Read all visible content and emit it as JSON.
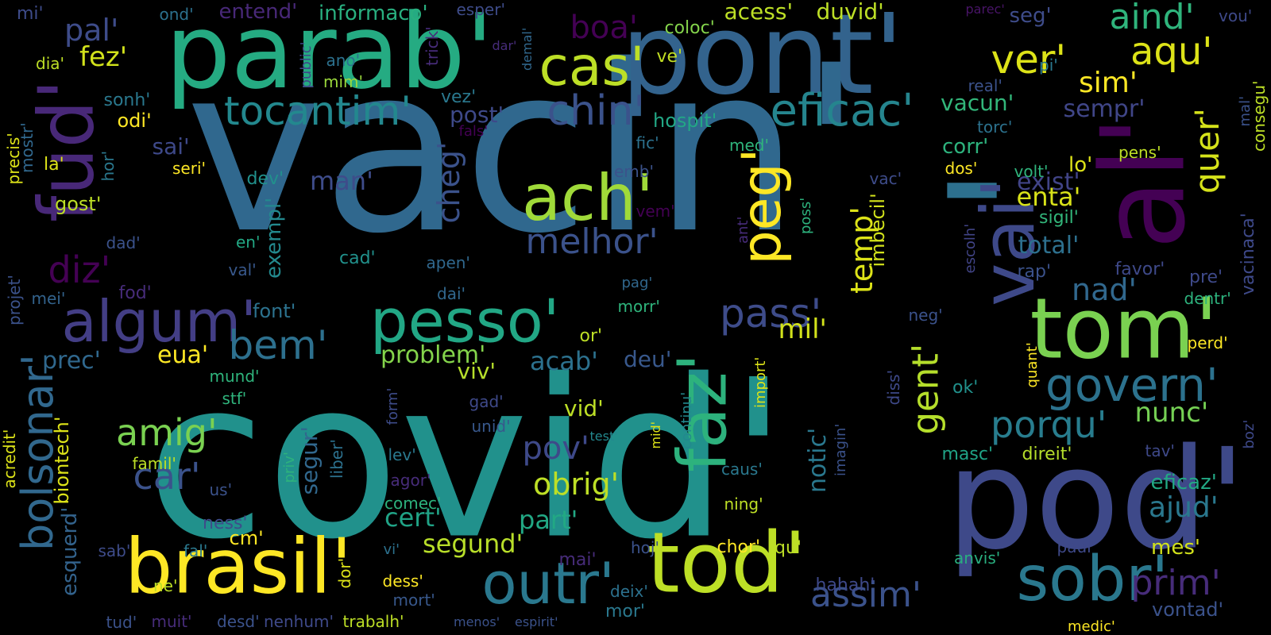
{
  "words": [
    {
      "text": "vacin'",
      "color": "#30688e"
    },
    {
      "text": "covid'",
      "color": "#21918c"
    },
    {
      "text": "'",
      "color": "#2d708e"
    },
    {
      "text": "pod'",
      "color": "#3e4989"
    },
    {
      "text": "parab'",
      "color": "#25ab82"
    },
    {
      "text": "pont'",
      "color": "#33638d"
    },
    {
      "text": "brasil'",
      "color": "#fde725"
    },
    {
      "text": "tod'",
      "color": "#bddf26"
    },
    {
      "text": "sobr'",
      "color": "#2a788e"
    },
    {
      "text": "outr'",
      "color": "#2a788e"
    },
    {
      "text": "tom'",
      "color": "#7ad151"
    },
    {
      "text": "fud'",
      "color": "#482878"
    },
    {
      "text": "vai'",
      "color": "#3e4989"
    },
    {
      "text": "al'",
      "color": "#440154"
    },
    {
      "text": "algum'",
      "color": "#433e85"
    },
    {
      "text": "pesso'",
      "color": "#22a785"
    },
    {
      "text": "faz'",
      "color": "#2db27d"
    },
    {
      "text": "ach'",
      "color": "#a0da39"
    },
    {
      "text": "cas'",
      "color": "#bddf26"
    },
    {
      "text": "peg'",
      "color": "#fde725"
    },
    {
      "text": "bolsonar'",
      "color": "#31688e"
    },
    {
      "text": "govern'",
      "color": "#2c728e"
    },
    {
      "text": "tocantim'",
      "color": "#23888e"
    },
    {
      "text": "eficac'",
      "color": "#25858e"
    },
    {
      "text": "chin'",
      "color": "#3b528b"
    },
    {
      "text": "ver'",
      "color": "#dde318"
    },
    {
      "text": "aqu'",
      "color": "#dde318"
    },
    {
      "text": "aind'",
      "color": "#2fb47c"
    },
    {
      "text": "quer'",
      "color": "#d5e21a"
    },
    {
      "text": "melhor'",
      "color": "#3b528b"
    },
    {
      "text": "porqu'",
      "color": "#287d8e"
    },
    {
      "text": "amig'",
      "color": "#7ad151"
    },
    {
      "text": "car'",
      "color": "#3b528b"
    },
    {
      "text": "pass'",
      "color": "#3e4c8a"
    },
    {
      "text": "bem'",
      "color": "#2d708e"
    },
    {
      "text": "gent'",
      "color": "#b5de2b"
    },
    {
      "text": "temp'",
      "color": "#dde318"
    },
    {
      "text": "assim'",
      "color": "#3b528b"
    },
    {
      "text": "prim'",
      "color": "#472c7a"
    },
    {
      "text": "nad'",
      "color": "#31688e"
    },
    {
      "text": "diz'",
      "color": "#440154"
    },
    {
      "text": "pov'",
      "color": "#3e4989"
    },
    {
      "text": "obrig'",
      "color": "#bddf26"
    },
    {
      "text": "ajud'",
      "color": "#2a788e"
    },
    {
      "text": "nunc'",
      "color": "#75d054"
    },
    {
      "text": "mil'",
      "color": "#d2e21b"
    },
    {
      "text": "cheg'",
      "color": "#3b528b"
    },
    {
      "text": "boa'",
      "color": "#440154"
    },
    {
      "text": "pal'",
      "color": "#3e4c8a"
    },
    {
      "text": "fez'",
      "color": "#d2e21b"
    },
    {
      "text": "sim'",
      "color": "#fde725"
    },
    {
      "text": "notic'",
      "color": "#2a788e"
    },
    {
      "text": "segund'",
      "color": "#b8de29"
    },
    {
      "text": "cert'",
      "color": "#20a386"
    },
    {
      "text": "part'",
      "color": "#22a884"
    },
    {
      "text": "acab'",
      "color": "#2c718e"
    },
    {
      "text": "problem'",
      "color": "#84d44b"
    },
    {
      "text": "prec'",
      "color": "#30688e"
    },
    {
      "text": "eua'",
      "color": "#fde725"
    },
    {
      "text": "viv'",
      "color": "#b5de2b"
    },
    {
      "text": "deu'",
      "color": "#38588c"
    },
    {
      "text": "vid'",
      "color": "#bddf26"
    },
    {
      "text": "enta'",
      "color": "#d8e219"
    },
    {
      "text": "total'",
      "color": "#2d708e"
    },
    {
      "text": "vacun'",
      "color": "#32b67a"
    },
    {
      "text": "sempr'",
      "color": "#404688"
    },
    {
      "text": "man'",
      "color": "#3e4c8a"
    },
    {
      "text": "sai'",
      "color": "#3e4989"
    },
    {
      "text": "corr'",
      "color": "#2db27d"
    },
    {
      "text": "exist'",
      "color": "#414487"
    },
    {
      "text": "lo'",
      "color": "#dde318"
    },
    {
      "text": "acess'",
      "color": "#bddf26"
    },
    {
      "text": "duvid'",
      "color": "#bddf26"
    },
    {
      "text": "informaco'",
      "color": "#29af7f"
    },
    {
      "text": "entend'",
      "color": "#482878"
    },
    {
      "text": "seg'",
      "color": "#3e4c8a"
    },
    {
      "text": "eficaz'",
      "color": "#22a884"
    },
    {
      "text": "vontad'",
      "color": "#3b528b"
    },
    {
      "text": "mes'",
      "color": "#d2e21b"
    },
    {
      "text": "esquerd'",
      "color": "#33638d"
    },
    {
      "text": "segur'",
      "color": "#31688e"
    },
    {
      "text": "biontech'",
      "color": "#dde318"
    },
    {
      "text": "exempl'",
      "color": "#23898e"
    },
    {
      "text": "imbecil'",
      "color": "#d2e21b"
    },
    {
      "text": "hospit'",
      "color": "#22a785"
    },
    {
      "text": "post'",
      "color": "#3e4989"
    },
    {
      "text": "vez'",
      "color": "#2a788e"
    },
    {
      "text": "mim'",
      "color": "#9bd93c"
    },
    {
      "text": "ano'",
      "color": "#2c718e"
    },
    {
      "text": "coloc'",
      "color": "#84d44b"
    },
    {
      "text": "ve'",
      "color": "#c2df23"
    },
    {
      "text": "odi'",
      "color": "#fde725"
    },
    {
      "text": "sonh'",
      "color": "#2a788e"
    },
    {
      "text": "gost'",
      "color": "#bddf26"
    },
    {
      "text": "font'",
      "color": "#2c728e"
    },
    {
      "text": "hor'",
      "color": "#2a788e"
    },
    {
      "text": "seri'",
      "color": "#fde725"
    },
    {
      "text": "la'",
      "color": "#dde318"
    },
    {
      "text": "dia'",
      "color": "#bddf26"
    },
    {
      "text": "mi'",
      "color": "#3e4c8a"
    },
    {
      "text": "ond'",
      "color": "#2c718e"
    },
    {
      "text": "esper'",
      "color": "#3e4c8a"
    },
    {
      "text": "parec'",
      "color": "#481467"
    },
    {
      "text": "vou'",
      "color": "#3e4989"
    },
    {
      "text": "real'",
      "color": "#3b528b"
    },
    {
      "text": "pi'",
      "color": "#2a788e"
    },
    {
      "text": "torc'",
      "color": "#2c728e"
    },
    {
      "text": "pens'",
      "color": "#bddf26"
    },
    {
      "text": "volt'",
      "color": "#2fb47c"
    },
    {
      "text": "dos'",
      "color": "#fde725"
    },
    {
      "text": "sigil'",
      "color": "#32b67a"
    },
    {
      "text": "favor'",
      "color": "#3e4989"
    },
    {
      "text": "rap'",
      "color": "#3b528b"
    },
    {
      "text": "pre'",
      "color": "#3e4989"
    },
    {
      "text": "dentr'",
      "color": "#2db27d"
    },
    {
      "text": "perd'",
      "color": "#fde725"
    },
    {
      "text": "tav'",
      "color": "#3e4989"
    },
    {
      "text": "direit'",
      "color": "#b5de2b"
    },
    {
      "text": "masc'",
      "color": "#20a386"
    },
    {
      "text": "anvis'",
      "color": "#29af7f"
    },
    {
      "text": "paul'",
      "color": "#3e4989"
    },
    {
      "text": "medic'",
      "color": "#fde725"
    },
    {
      "text": "ok'",
      "color": "#21918c"
    },
    {
      "text": "quant'",
      "color": "#fde725"
    },
    {
      "text": "diss'",
      "color": "#3e4989"
    },
    {
      "text": "escolh'",
      "color": "#414487"
    },
    {
      "text": "poss'",
      "color": "#2db27d"
    },
    {
      "text": "neg'",
      "color": "#3b528b"
    },
    {
      "text": "ant'",
      "color": "#472c7a"
    },
    {
      "text": "vac'",
      "color": "#3e4c8a"
    },
    {
      "text": "med'",
      "color": "#2fb47c"
    },
    {
      "text": "fic'",
      "color": "#2c718e"
    },
    {
      "text": "emb'",
      "color": "#3b528b"
    },
    {
      "text": "vem'",
      "color": "#440154"
    },
    {
      "text": "dev'",
      "color": "#21918c"
    },
    {
      "text": "cad'",
      "color": "#21918c"
    },
    {
      "text": "apen'",
      "color": "#30688e"
    },
    {
      "text": "dai'",
      "color": "#31688e"
    },
    {
      "text": "pag'",
      "color": "#31688e"
    },
    {
      "text": "morr'",
      "color": "#2fb47c"
    },
    {
      "text": "or'",
      "color": "#bddf26"
    },
    {
      "text": "import'",
      "color": "#dde318"
    },
    {
      "text": "continu'",
      "color": "#23898e"
    },
    {
      "text": "caus'",
      "color": "#2a788e"
    },
    {
      "text": "ning'",
      "color": "#bddf26"
    },
    {
      "text": "imagin'",
      "color": "#3b528b"
    },
    {
      "text": "hoj'",
      "color": "#3b528b"
    },
    {
      "text": "chor'",
      "color": "#fde725"
    },
    {
      "text": "qu'",
      "color": "#bddf26"
    },
    {
      "text": "deix'",
      "color": "#2c718e"
    },
    {
      "text": "mor'",
      "color": "#2a788e"
    },
    {
      "text": "hahah'",
      "color": "#3e4989"
    },
    {
      "text": "mid'",
      "color": "#dde318"
    },
    {
      "text": "test'",
      "color": "#23888e"
    },
    {
      "text": "gad'",
      "color": "#3e4989"
    },
    {
      "text": "unid'",
      "color": "#38588c"
    },
    {
      "text": "form'",
      "color": "#3e4c8a"
    },
    {
      "text": "lev'",
      "color": "#2a788e"
    },
    {
      "text": "agor'",
      "color": "#472c7a"
    },
    {
      "text": "comec'",
      "color": "#2db27d"
    },
    {
      "text": "mai'",
      "color": "#472c7a"
    },
    {
      "text": "dess'",
      "color": "#fde725"
    },
    {
      "text": "mort'",
      "color": "#38588c"
    },
    {
      "text": "vi'",
      "color": "#2c718e"
    },
    {
      "text": "dor'",
      "color": "#dde318"
    },
    {
      "text": "menos'",
      "color": "#3b528b"
    },
    {
      "text": "espirit'",
      "color": "#3b528b"
    },
    {
      "text": "nenhum'",
      "color": "#3e4989"
    },
    {
      "text": "trabalh'",
      "color": "#bddf26"
    },
    {
      "text": "desd'",
      "color": "#3b528b"
    },
    {
      "text": "muit'",
      "color": "#472c7a"
    },
    {
      "text": "tud'",
      "color": "#3b528b"
    },
    {
      "text": "ne'",
      "color": "#bddf26"
    },
    {
      "text": "fal'",
      "color": "#2a788e"
    },
    {
      "text": "sab'",
      "color": "#3e4c8a"
    },
    {
      "text": "cm'",
      "color": "#fde725"
    },
    {
      "text": "ness'",
      "color": "#3e4c8a"
    },
    {
      "text": "us'",
      "color": "#3b528b"
    },
    {
      "text": "priv'",
      "color": "#2db27d"
    },
    {
      "text": "liber'",
      "color": "#2c718e"
    },
    {
      "text": "famil'",
      "color": "#bddf26"
    },
    {
      "text": "acredit'",
      "color": "#dde318"
    },
    {
      "text": "projet'",
      "color": "#3b528b"
    },
    {
      "text": "mei'",
      "color": "#33638d"
    },
    {
      "text": "fod'",
      "color": "#472c7a"
    },
    {
      "text": "val'",
      "color": "#38588c"
    },
    {
      "text": "en'",
      "color": "#22a884"
    },
    {
      "text": "dad'",
      "color": "#3b528b"
    },
    {
      "text": "mund'",
      "color": "#2fb47c"
    },
    {
      "text": "stf'",
      "color": "#2fb47c"
    },
    {
      "text": "precis'",
      "color": "#dde318"
    },
    {
      "text": "mostr'",
      "color": "#31688e"
    },
    {
      "text": "public'",
      "color": "#3e4989"
    },
    {
      "text": "trick'",
      "color": "#472c7a"
    },
    {
      "text": "dar'",
      "color": "#472c7a"
    },
    {
      "text": "demal'",
      "color": "#31688e"
    },
    {
      "text": "fals'",
      "color": "#440154"
    },
    {
      "text": "consegu'",
      "color": "#bddf26"
    },
    {
      "text": "mal'",
      "color": "#3b528b"
    },
    {
      "text": "vacinaca'",
      "color": "#3e4989"
    },
    {
      "text": "boz'",
      "color": "#3e4989"
    }
  ]
}
